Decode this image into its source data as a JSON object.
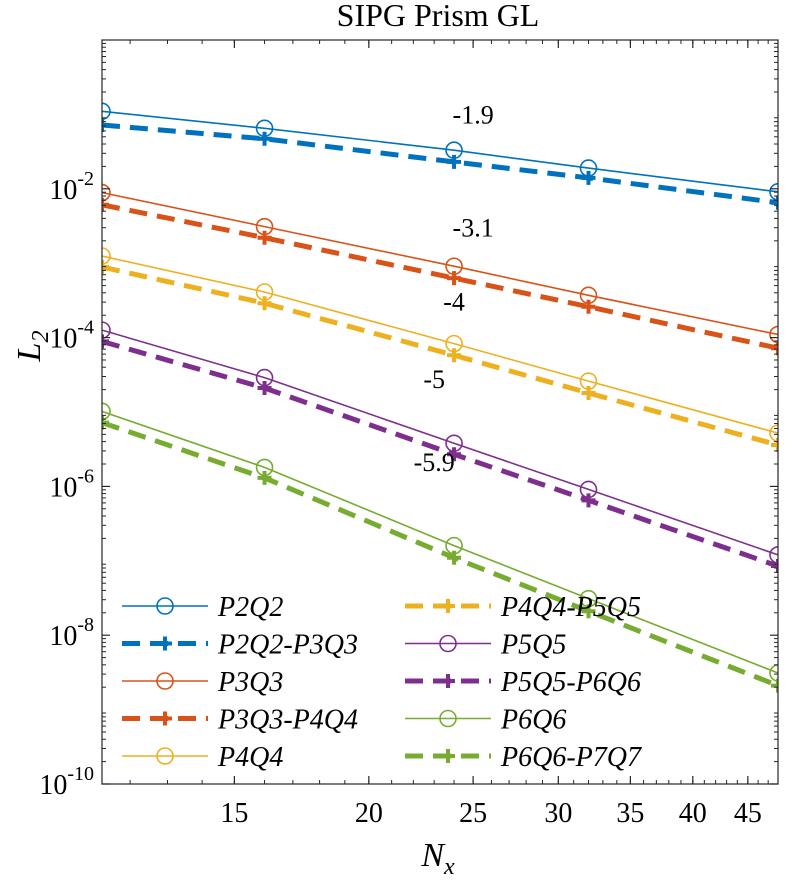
{
  "chart_data": {
    "type": "line",
    "title": "SIPG Prism GL",
    "xlabel": {
      "base": "N",
      "sub": "x"
    },
    "ylabel": {
      "base": "L",
      "sub": "2"
    },
    "xscale": "log",
    "yscale": "log",
    "xlim": [
      11.3,
      48
    ],
    "ylim": [
      1e-10,
      1
    ],
    "x_ticks": [
      {
        "value": 15,
        "label": "15"
      },
      {
        "value": 20,
        "label": "20"
      },
      {
        "value": 25,
        "label": "25"
      },
      {
        "value": 30,
        "label": "30"
      },
      {
        "value": 35,
        "label": "35"
      },
      {
        "value": 40,
        "label": "40"
      },
      {
        "value": 45,
        "label": "45"
      }
    ],
    "y_ticks": [
      {
        "value": 0.01,
        "base": "10",
        "exp": "-2"
      },
      {
        "value": 0.0001,
        "base": "10",
        "exp": "-4"
      },
      {
        "value": 1e-06,
        "base": "10",
        "exp": "-6"
      },
      {
        "value": 1e-08,
        "base": "10",
        "exp": "-8"
      },
      {
        "value": 1e-10,
        "base": "10",
        "exp": "-10"
      }
    ],
    "grid": false,
    "legend_position": "bottom-left",
    "legend_columns": 2,
    "x": [
      11.3,
      16,
      24,
      32,
      48
    ],
    "series": [
      {
        "name": "P2Q2",
        "color": "#0072BD",
        "style": "solid-circle",
        "values": [
          0.11,
          0.065,
          0.033,
          0.019,
          0.0091
        ]
      },
      {
        "name": "P2Q2-P3Q3",
        "color": "#0072BD",
        "style": "dashed-plus",
        "values": [
          0.072,
          0.047,
          0.023,
          0.014,
          0.0065
        ]
      },
      {
        "name": "P3Q3",
        "color": "#D95319",
        "style": "solid-circle",
        "values": [
          0.0089,
          0.0031,
          0.00091,
          0.00037,
          0.00011
        ]
      },
      {
        "name": "P3Q3-P4Q4",
        "color": "#D95319",
        "style": "dashed-plus",
        "values": [
          0.0061,
          0.0022,
          0.00063,
          0.00026,
          7.2e-05
        ]
      },
      {
        "name": "P4Q4",
        "color": "#EDB120",
        "style": "solid-circle",
        "values": [
          0.00125,
          0.00041,
          8.3e-05,
          2.6e-05,
          5.2e-06
        ]
      },
      {
        "name": "P4Q4-P5Q5",
        "color": "#EDB120",
        "style": "dashed-plus",
        "values": [
          0.00089,
          0.00029,
          5.8e-05,
          1.8e-05,
          3.6e-06
        ]
      },
      {
        "name": "P5Q5",
        "color": "#7E2F8E",
        "style": "solid-circle",
        "values": [
          0.000126,
          2.9e-05,
          3.8e-06,
          9.1e-07,
          1.2e-07
        ]
      },
      {
        "name": "P5Q5-P6Q6",
        "color": "#7E2F8E",
        "style": "dashed-plus",
        "values": [
          8.9e-05,
          2.1e-05,
          2.7e-06,
          6.5e-07,
          8.5e-08
        ]
      },
      {
        "name": "P6Q6",
        "color": "#77AC30",
        "style": "solid-circle",
        "values": [
          1.02e-05,
          1.8e-06,
          1.6e-07,
          3.1e-08,
          3.1e-09
        ]
      },
      {
        "name": "P6Q6-P7Q7",
        "color": "#77AC30",
        "style": "dashed-plus",
        "values": [
          7.2e-06,
          1.3e-06,
          1.1e-07,
          2.1e-08,
          2.1e-09
        ]
      }
    ],
    "annotations": [
      {
        "text": "-1.9",
        "x": 25,
        "y": 0.075
      },
      {
        "text": "-3.1",
        "x": 25,
        "y": 0.0023
      },
      {
        "text": "-4",
        "x": 24,
        "y": 0.00023
      },
      {
        "text": "-5",
        "x": 23,
        "y": 2.1e-05
      },
      {
        "text": "-5.9",
        "x": 23,
        "y": 1.6e-06
      }
    ]
  }
}
